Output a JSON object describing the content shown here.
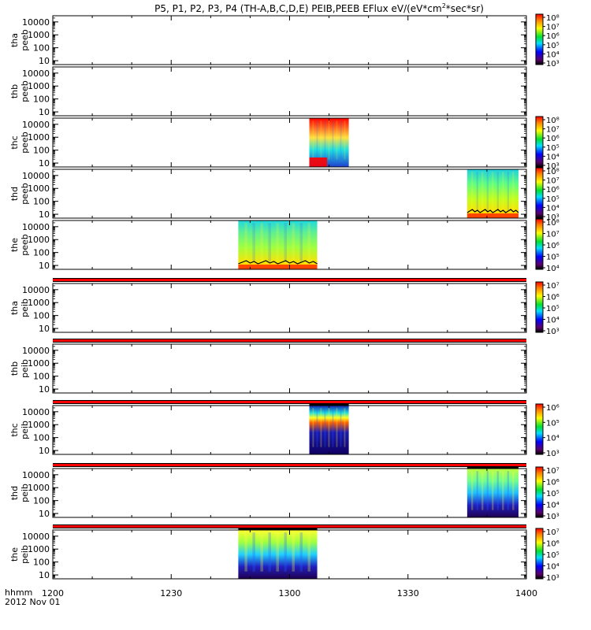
{
  "chart_data": {
    "type": "heatmap",
    "title": "P5, P1, P2, P3, P4 (TH-A,B,C,D,E) PEIB,PEEB EFlux eV/(eV*cm",
    "title_sup": "2",
    "title_tail": "*sec*sr)",
    "x_axis": {
      "label": "hhmm",
      "date": "2012 Nov 01",
      "range": [
        "12:00",
        "14:00"
      ],
      "ticks": [
        "1200",
        "1230",
        "1300",
        "1330",
        "1400"
      ]
    },
    "y_axis_ticks": [
      "10",
      "100",
      "1000",
      "10000"
    ],
    "y_scale": "log",
    "y_range_eV": [
      5,
      30000
    ],
    "colorscale": "rainbow (black-purple-blue-cyan-green-yellow-red)",
    "panels": [
      {
        "line1": "tha",
        "line2": "peeb",
        "cbar": [
          "10³",
          "10⁴",
          "10⁵",
          "10⁶",
          "10⁷",
          "10⁸"
        ],
        "data": []
      },
      {
        "line1": "thb",
        "line2": "peeb",
        "cbar": [],
        "data": []
      },
      {
        "line1": "thc",
        "line2": "peeb",
        "cbar": [
          "10³",
          "10⁴",
          "10⁵",
          "10⁶",
          "10⁷",
          "10⁸"
        ],
        "data": [
          {
            "start": "13:05",
            "end": "13:15",
            "pattern": "e_c"
          }
        ]
      },
      {
        "line1": "thd",
        "line2": "peeb",
        "cbar": [
          "10³",
          "10⁴",
          "10⁵",
          "10⁶",
          "10⁷",
          "10⁸"
        ],
        "data": [
          {
            "start": "13:45",
            "end": "13:58",
            "pattern": "e_d"
          }
        ]
      },
      {
        "line1": "the",
        "line2": "peeb",
        "cbar": [
          "10⁴",
          "10⁵",
          "10⁶",
          "10⁷",
          "10⁸"
        ],
        "data": [
          {
            "start": "12:47",
            "end": "13:07",
            "pattern": "e_e"
          }
        ]
      },
      {
        "line1": "tha",
        "line2": "peib",
        "cbar": [
          "10³",
          "10⁴",
          "10⁵",
          "10⁶",
          "10⁷"
        ],
        "data": []
      },
      {
        "line1": "thb",
        "line2": "peib",
        "cbar": [],
        "data": []
      },
      {
        "line1": "thc",
        "line2": "peib",
        "cbar": [
          "10³",
          "10⁴",
          "10⁵",
          "10⁶"
        ],
        "data": [
          {
            "start": "13:05",
            "end": "13:15",
            "pattern": "i_c"
          }
        ]
      },
      {
        "line1": "thd",
        "line2": "peib",
        "cbar": [
          "10³",
          "10⁴",
          "10⁵",
          "10⁶",
          "10⁷"
        ],
        "data": [
          {
            "start": "13:45",
            "end": "13:58",
            "pattern": "i_d"
          }
        ]
      },
      {
        "line1": "the",
        "line2": "peib",
        "cbar": [
          "10³",
          "10⁴",
          "10⁵",
          "10⁶",
          "10⁷"
        ],
        "data": [
          {
            "start": "12:47",
            "end": "13:07",
            "pattern": "i_e"
          }
        ]
      }
    ]
  }
}
